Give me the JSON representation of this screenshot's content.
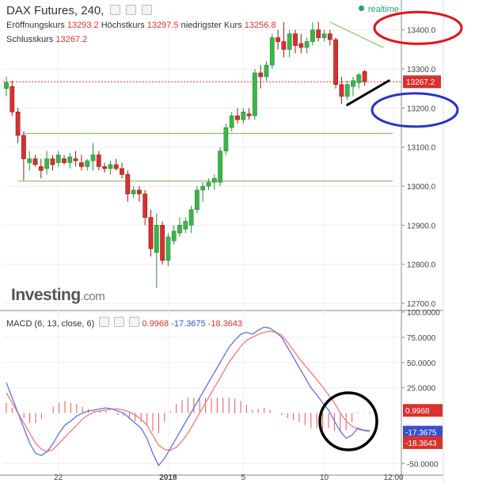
{
  "header": {
    "title": "DAX Futures, 240,",
    "open_label": "Eröffnungskurs",
    "open_value": "13293.2",
    "high_label": "Höchstkurs",
    "high_value": "13297.5",
    "low_label": "niedrigster Kurs",
    "low_value": "13256.8",
    "close_label": "Schlusskurs",
    "close_value": "13267.2",
    "realtime_label": "realtime"
  },
  "macd_header": {
    "label": "MACD (6, 13, close, 6)",
    "v1": "0.9968",
    "v2": "-17.3675",
    "v3": "-18.3643"
  },
  "logo": {
    "main": "Investing",
    "suffix": ".com"
  },
  "colors": {
    "up": "#3cb44b",
    "down": "#d8312f",
    "macd_line": "#6f7ad8",
    "signal_line": "#f08080",
    "support": "#8fbf6a",
    "annotation_red": "#e0141e",
    "annotation_blue": "#2b33c9",
    "annotation_black": "#000000"
  },
  "chart_data": [
    {
      "type": "candlestick",
      "title": "DAX Futures, 240,",
      "x_ticks": [
        "22",
        "2018",
        "5",
        "10",
        "12:00"
      ],
      "y_ticks": [
        "12700.0",
        "12800.0",
        "12900.0",
        "13000.0",
        "13100.0",
        "13200.0",
        "13300.0",
        "13400.0"
      ],
      "ylim": [
        12690,
        13440
      ],
      "last_price": "13267.2",
      "candles": [
        {
          "o": 13250,
          "h": 13280,
          "l": 13230,
          "c": 13265
        },
        {
          "o": 13255,
          "h": 13270,
          "l": 13180,
          "c": 13190
        },
        {
          "o": 13190,
          "h": 13200,
          "l": 13110,
          "c": 13130
        },
        {
          "o": 13130,
          "h": 13140,
          "l": 13015,
          "c": 13070
        },
        {
          "o": 13060,
          "h": 13090,
          "l": 13040,
          "c": 13070
        },
        {
          "o": 13070,
          "h": 13080,
          "l": 13050,
          "c": 13055
        },
        {
          "o": 13050,
          "h": 13070,
          "l": 13020,
          "c": 13040
        },
        {
          "o": 13045,
          "h": 13090,
          "l": 13030,
          "c": 13070
        },
        {
          "o": 13070,
          "h": 13080,
          "l": 13040,
          "c": 13055
        },
        {
          "o": 13060,
          "h": 13090,
          "l": 13050,
          "c": 13080
        },
        {
          "o": 13070,
          "h": 13080,
          "l": 13055,
          "c": 13060
        },
        {
          "o": 13060,
          "h": 13085,
          "l": 13045,
          "c": 13075
        },
        {
          "o": 13070,
          "h": 13090,
          "l": 13050,
          "c": 13065
        },
        {
          "o": 13060,
          "h": 13080,
          "l": 13040,
          "c": 13050
        },
        {
          "o": 13050,
          "h": 13070,
          "l": 13040,
          "c": 13065
        },
        {
          "o": 13065,
          "h": 13110,
          "l": 13040,
          "c": 13080
        },
        {
          "o": 13080,
          "h": 13090,
          "l": 13040,
          "c": 13050
        },
        {
          "o": 13050,
          "h": 13060,
          "l": 13035,
          "c": 13045
        },
        {
          "o": 13045,
          "h": 13065,
          "l": 13030,
          "c": 13055
        },
        {
          "o": 13055,
          "h": 13070,
          "l": 13040,
          "c": 13045
        },
        {
          "o": 13045,
          "h": 13060,
          "l": 13020,
          "c": 13030
        },
        {
          "o": 13030,
          "h": 13040,
          "l": 12960,
          "c": 12980
        },
        {
          "o": 12980,
          "h": 13000,
          "l": 12970,
          "c": 12990
        },
        {
          "o": 12990,
          "h": 13000,
          "l": 12960,
          "c": 12980
        },
        {
          "o": 12980,
          "h": 12990,
          "l": 12900,
          "c": 12920
        },
        {
          "o": 12920,
          "h": 12940,
          "l": 12820,
          "c": 12840
        },
        {
          "o": 12830,
          "h": 12930,
          "l": 12740,
          "c": 12900
        },
        {
          "o": 12900,
          "h": 12910,
          "l": 12800,
          "c": 12810
        },
        {
          "o": 12810,
          "h": 12880,
          "l": 12795,
          "c": 12870
        },
        {
          "o": 12860,
          "h": 12900,
          "l": 12850,
          "c": 12885
        },
        {
          "o": 12880,
          "h": 12920,
          "l": 12870,
          "c": 12900
        },
        {
          "o": 12890,
          "h": 12920,
          "l": 12880,
          "c": 12910
        },
        {
          "o": 12900,
          "h": 12950,
          "l": 12880,
          "c": 12940
        },
        {
          "o": 12940,
          "h": 13000,
          "l": 12930,
          "c": 12990
        },
        {
          "o": 12990,
          "h": 13010,
          "l": 12960,
          "c": 13000
        },
        {
          "o": 13000,
          "h": 13020,
          "l": 12990,
          "c": 13010
        },
        {
          "o": 13010,
          "h": 13030,
          "l": 12990,
          "c": 13020
        },
        {
          "o": 13010,
          "h": 13100,
          "l": 13000,
          "c": 13090
        },
        {
          "o": 13090,
          "h": 13160,
          "l": 13080,
          "c": 13150
        },
        {
          "o": 13150,
          "h": 13190,
          "l": 13140,
          "c": 13180
        },
        {
          "o": 13180,
          "h": 13200,
          "l": 13160,
          "c": 13170
        },
        {
          "o": 13170,
          "h": 13200,
          "l": 13160,
          "c": 13190
        },
        {
          "o": 13185,
          "h": 13200,
          "l": 13170,
          "c": 13180
        },
        {
          "o": 13180,
          "h": 13300,
          "l": 13170,
          "c": 13290
        },
        {
          "o": 13290,
          "h": 13310,
          "l": 13250,
          "c": 13280
        },
        {
          "o": 13280,
          "h": 13320,
          "l": 13270,
          "c": 13310
        },
        {
          "o": 13310,
          "h": 13390,
          "l": 13300,
          "c": 13380
        },
        {
          "o": 13380,
          "h": 13400,
          "l": 13350,
          "c": 13370
        },
        {
          "o": 13370,
          "h": 13420,
          "l": 13330,
          "c": 13350
        },
        {
          "o": 13350,
          "h": 13400,
          "l": 13330,
          "c": 13390
        },
        {
          "o": 13390,
          "h": 13400,
          "l": 13340,
          "c": 13360
        },
        {
          "o": 13365,
          "h": 13390,
          "l": 13340,
          "c": 13355
        },
        {
          "o": 13355,
          "h": 13380,
          "l": 13340,
          "c": 13370
        },
        {
          "o": 13370,
          "h": 13420,
          "l": 13360,
          "c": 13400
        },
        {
          "o": 13400,
          "h": 13420,
          "l": 13370,
          "c": 13380
        },
        {
          "o": 13380,
          "h": 13400,
          "l": 13370,
          "c": 13390
        },
        {
          "o": 13390,
          "h": 13400,
          "l": 13360,
          "c": 13375
        },
        {
          "o": 13375,
          "h": 13380,
          "l": 13250,
          "c": 13260
        },
        {
          "o": 13260,
          "h": 13280,
          "l": 13210,
          "c": 13230
        },
        {
          "o": 13230,
          "h": 13270,
          "l": 13220,
          "c": 13260
        },
        {
          "o": 13255,
          "h": 13280,
          "l": 13230,
          "c": 13270
        },
        {
          "o": 13265,
          "h": 13290,
          "l": 13250,
          "c": 13285
        },
        {
          "o": 13293.2,
          "h": 13297.5,
          "l": 13256.8,
          "c": 13267.2
        }
      ],
      "horizontal_lines": [
        13135,
        13013
      ],
      "trend_lines": [
        {
          "from": [
            56,
            13420
          ],
          "to": [
            63,
            13355
          ],
          "color": "support"
        },
        {
          "from": [
            59,
            13208
          ],
          "to": [
            64,
            13270
          ],
          "color": "black"
        }
      ],
      "annotations": [
        {
          "shape": "ellipse",
          "color": "annotation_red",
          "around_y": 13400
        },
        {
          "shape": "ellipse",
          "color": "annotation_blue",
          "around_y": 13200
        }
      ]
    },
    {
      "type": "line",
      "title": "MACD (6, 13, close, 6)",
      "y_ticks": [
        "100.0000",
        "75.0000",
        "50.0000",
        "25.0000",
        "-50.0000"
      ],
      "ylim": [
        -60,
        100
      ],
      "series": [
        {
          "name": "MACD",
          "values": [
            30,
            15,
            0,
            -15,
            -30,
            -40,
            -42,
            -38,
            -30,
            -20,
            -12,
            -8,
            -3,
            0,
            2,
            3,
            4,
            5,
            4,
            2,
            0,
            -5,
            -10,
            -15,
            -25,
            -40,
            -52,
            -45,
            -35,
            -25,
            -15,
            -5,
            5,
            15,
            25,
            35,
            45,
            55,
            65,
            72,
            78,
            80,
            78,
            82,
            85,
            84,
            80,
            75,
            65,
            55,
            45,
            35,
            25,
            18,
            10,
            3,
            -8,
            -18,
            -25,
            -22,
            -15,
            -17,
            -17.3675
          ]
        },
        {
          "name": "Signal",
          "values": [
            20,
            10,
            0,
            -10,
            -20,
            -30,
            -36,
            -38,
            -36,
            -30,
            -24,
            -18,
            -12,
            -6,
            -2,
            1,
            2,
            3,
            4,
            4,
            3,
            1,
            -2,
            -6,
            -12,
            -22,
            -32,
            -36,
            -37,
            -34,
            -28,
            -20,
            -10,
            0,
            10,
            20,
            30,
            40,
            50,
            58,
            66,
            72,
            75,
            78,
            80,
            81,
            80,
            77,
            70,
            62,
            54,
            47,
            40,
            33,
            26,
            18,
            10,
            0,
            -8,
            -13,
            -16,
            -17.5,
            -18.3643
          ]
        },
        {
          "name": "Histogram",
          "values": [
            10,
            5,
            0,
            -5,
            -10,
            -10,
            -6,
            0,
            6,
            10,
            12,
            10,
            9,
            6,
            4,
            2,
            2,
            2,
            0,
            -2,
            -3,
            -6,
            -8,
            -9,
            -13,
            -18,
            -20,
            -9,
            2,
            9,
            13,
            15,
            15,
            15,
            15,
            15,
            15,
            15,
            15,
            14,
            12,
            8,
            3,
            4,
            5,
            3,
            0,
            -2,
            -5,
            -7,
            -9,
            -12,
            -15,
            -15,
            -16,
            -15,
            -18,
            -18,
            -17,
            -9,
            1,
            0.5,
            0.9968
          ]
        }
      ],
      "last_values": [
        "0.9968",
        "-17.3675",
        "-18.3643"
      ],
      "annotations": [
        {
          "shape": "circle",
          "color": "annotation_black",
          "around": "latest values"
        }
      ]
    }
  ]
}
